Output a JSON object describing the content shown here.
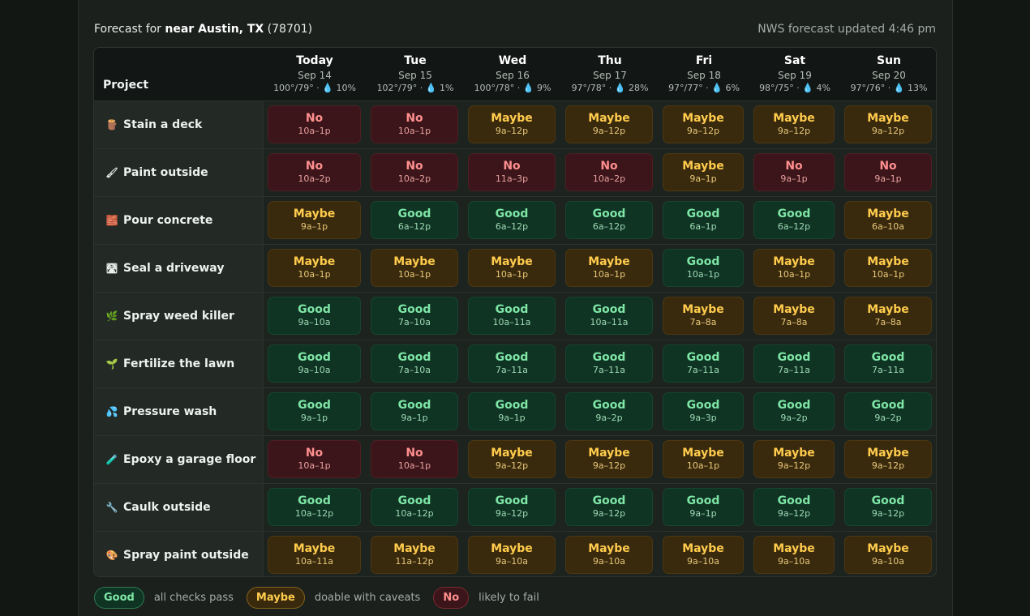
{
  "header": {
    "location_prefix": "Forecast for ",
    "location_bold": "near Austin, TX",
    "location_zip": " (78701)",
    "updated": "NWS forecast updated 4:46 pm"
  },
  "table": {
    "project_header": "Project",
    "days": [
      {
        "name": "Today",
        "date": "Sep 14",
        "temps": "100°/79° ·",
        "precip": "10%"
      },
      {
        "name": "Tue",
        "date": "Sep 15",
        "temps": "102°/79° ·",
        "precip": "1%"
      },
      {
        "name": "Wed",
        "date": "Sep 16",
        "temps": "100°/78° ·",
        "precip": "9%"
      },
      {
        "name": "Thu",
        "date": "Sep 17",
        "temps": "97°/78° ·",
        "precip": "28%"
      },
      {
        "name": "Fri",
        "date": "Sep 18",
        "temps": "97°/77° ·",
        "precip": "6%"
      },
      {
        "name": "Sat",
        "date": "Sep 19",
        "temps": "98°/75° ·",
        "precip": "4%"
      },
      {
        "name": "Sun",
        "date": "Sep 20",
        "temps": "97°/76° ·",
        "precip": "13%"
      }
    ],
    "rows": [
      {
        "project": "Stain a deck",
        "icon": "🪵",
        "icon_name": "wood-log-icon",
        "cells": [
          {
            "status": "no",
            "label": "No",
            "time": "10a–1p"
          },
          {
            "status": "no",
            "label": "No",
            "time": "10a–1p"
          },
          {
            "status": "maybe",
            "label": "Maybe",
            "time": "9a–12p"
          },
          {
            "status": "maybe",
            "label": "Maybe",
            "time": "9a–12p"
          },
          {
            "status": "maybe",
            "label": "Maybe",
            "time": "9a–12p"
          },
          {
            "status": "maybe",
            "label": "Maybe",
            "time": "9a–12p"
          },
          {
            "status": "maybe",
            "label": "Maybe",
            "time": "9a–12p"
          }
        ]
      },
      {
        "project": "Paint outside",
        "icon": "🖌",
        "icon_name": "paintbrush-icon",
        "cells": [
          {
            "status": "no",
            "label": "No",
            "time": "10a–2p"
          },
          {
            "status": "no",
            "label": "No",
            "time": "10a–2p"
          },
          {
            "status": "no",
            "label": "No",
            "time": "11a–3p"
          },
          {
            "status": "no",
            "label": "No",
            "time": "10a–2p"
          },
          {
            "status": "maybe",
            "label": "Maybe",
            "time": "9a–1p"
          },
          {
            "status": "no",
            "label": "No",
            "time": "9a–1p"
          },
          {
            "status": "no",
            "label": "No",
            "time": "9a–1p"
          }
        ]
      },
      {
        "project": "Pour concrete",
        "icon": "🧱",
        "icon_name": "bricks-icon",
        "cells": [
          {
            "status": "maybe",
            "label": "Maybe",
            "time": "9a–1p"
          },
          {
            "status": "good",
            "label": "Good",
            "time": "6a–12p"
          },
          {
            "status": "good",
            "label": "Good",
            "time": "6a–12p"
          },
          {
            "status": "good",
            "label": "Good",
            "time": "6a–12p"
          },
          {
            "status": "good",
            "label": "Good",
            "time": "6a–1p"
          },
          {
            "status": "good",
            "label": "Good",
            "time": "6a–12p"
          },
          {
            "status": "maybe",
            "label": "Maybe",
            "time": "6a–10a"
          }
        ]
      },
      {
        "project": "Seal a driveway",
        "icon": "🛣",
        "icon_name": "road-icon",
        "cells": [
          {
            "status": "maybe",
            "label": "Maybe",
            "time": "10a–1p"
          },
          {
            "status": "maybe",
            "label": "Maybe",
            "time": "10a–1p"
          },
          {
            "status": "maybe",
            "label": "Maybe",
            "time": "10a–1p"
          },
          {
            "status": "maybe",
            "label": "Maybe",
            "time": "10a–1p"
          },
          {
            "status": "good",
            "label": "Good",
            "time": "10a–1p"
          },
          {
            "status": "maybe",
            "label": "Maybe",
            "time": "10a–1p"
          },
          {
            "status": "maybe",
            "label": "Maybe",
            "time": "10a–1p"
          }
        ]
      },
      {
        "project": "Spray weed killer",
        "icon": "🌿",
        "icon_name": "herb-icon",
        "cells": [
          {
            "status": "good",
            "label": "Good",
            "time": "9a–10a"
          },
          {
            "status": "good",
            "label": "Good",
            "time": "7a–10a"
          },
          {
            "status": "good",
            "label": "Good",
            "time": "10a–11a"
          },
          {
            "status": "good",
            "label": "Good",
            "time": "10a–11a"
          },
          {
            "status": "maybe",
            "label": "Maybe",
            "time": "7a–8a"
          },
          {
            "status": "maybe",
            "label": "Maybe",
            "time": "7a–8a"
          },
          {
            "status": "maybe",
            "label": "Maybe",
            "time": "7a–8a"
          }
        ]
      },
      {
        "project": "Fertilize the lawn",
        "icon": "🌱",
        "icon_name": "seedling-icon",
        "cells": [
          {
            "status": "good",
            "label": "Good",
            "time": "9a–10a"
          },
          {
            "status": "good",
            "label": "Good",
            "time": "7a–10a"
          },
          {
            "status": "good",
            "label": "Good",
            "time": "7a–11a"
          },
          {
            "status": "good",
            "label": "Good",
            "time": "7a–11a"
          },
          {
            "status": "good",
            "label": "Good",
            "time": "7a–11a"
          },
          {
            "status": "good",
            "label": "Good",
            "time": "7a–11a"
          },
          {
            "status": "good",
            "label": "Good",
            "time": "7a–11a"
          }
        ]
      },
      {
        "project": "Pressure wash",
        "icon": "💦",
        "icon_name": "water-drops-icon",
        "cells": [
          {
            "status": "good",
            "label": "Good",
            "time": "9a–1p"
          },
          {
            "status": "good",
            "label": "Good",
            "time": "9a–1p"
          },
          {
            "status": "good",
            "label": "Good",
            "time": "9a–1p"
          },
          {
            "status": "good",
            "label": "Good",
            "time": "9a–2p"
          },
          {
            "status": "good",
            "label": "Good",
            "time": "9a–3p"
          },
          {
            "status": "good",
            "label": "Good",
            "time": "9a–2p"
          },
          {
            "status": "good",
            "label": "Good",
            "time": "9a–2p"
          }
        ]
      },
      {
        "project": "Epoxy a garage floor",
        "icon": "🧪",
        "icon_name": "test-tube-icon",
        "cells": [
          {
            "status": "no",
            "label": "No",
            "time": "10a–1p"
          },
          {
            "status": "no",
            "label": "No",
            "time": "10a–1p"
          },
          {
            "status": "maybe",
            "label": "Maybe",
            "time": "9a–12p"
          },
          {
            "status": "maybe",
            "label": "Maybe",
            "time": "9a–12p"
          },
          {
            "status": "maybe",
            "label": "Maybe",
            "time": "10a–1p"
          },
          {
            "status": "maybe",
            "label": "Maybe",
            "time": "9a–12p"
          },
          {
            "status": "maybe",
            "label": "Maybe",
            "time": "9a–12p"
          }
        ]
      },
      {
        "project": "Caulk outside",
        "icon": "🔧",
        "icon_name": "wrench-icon",
        "cells": [
          {
            "status": "good",
            "label": "Good",
            "time": "10a–12p"
          },
          {
            "status": "good",
            "label": "Good",
            "time": "10a–12p"
          },
          {
            "status": "good",
            "label": "Good",
            "time": "9a–12p"
          },
          {
            "status": "good",
            "label": "Good",
            "time": "9a–12p"
          },
          {
            "status": "good",
            "label": "Good",
            "time": "9a–1p"
          },
          {
            "status": "good",
            "label": "Good",
            "time": "9a–12p"
          },
          {
            "status": "good",
            "label": "Good",
            "time": "9a–12p"
          }
        ]
      },
      {
        "project": "Spray paint outside",
        "icon": "🎨",
        "icon_name": "palette-icon",
        "cells": [
          {
            "status": "maybe",
            "label": "Maybe",
            "time": "10a–11a"
          },
          {
            "status": "maybe",
            "label": "Maybe",
            "time": "11a–12p"
          },
          {
            "status": "maybe",
            "label": "Maybe",
            "time": "9a–10a"
          },
          {
            "status": "maybe",
            "label": "Maybe",
            "time": "9a–10a"
          },
          {
            "status": "maybe",
            "label": "Maybe",
            "time": "9a–10a"
          },
          {
            "status": "maybe",
            "label": "Maybe",
            "time": "9a–10a"
          },
          {
            "status": "maybe",
            "label": "Maybe",
            "time": "9a–10a"
          }
        ]
      }
    ]
  },
  "legend": [
    {
      "status": "good",
      "label": "Good",
      "text": "all checks pass"
    },
    {
      "status": "maybe",
      "label": "Maybe",
      "text": "doable with caveats"
    },
    {
      "status": "no",
      "label": "No",
      "text": "likely to fail"
    }
  ],
  "colors": {
    "good": "#7fe6a6",
    "maybe": "#ffcc4d",
    "no": "#ff8f8f",
    "background": "#121714"
  }
}
